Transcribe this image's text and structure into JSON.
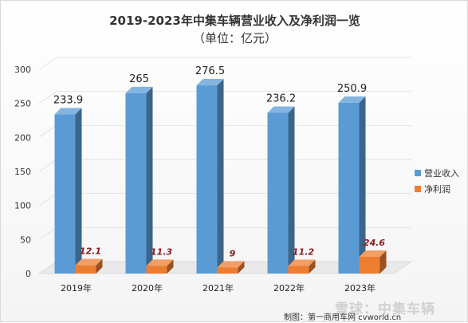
{
  "title": "2019-2023年中集车辆营业收入及净利润一览",
  "subtitle": "（单位：亿元）",
  "credit": "制图：第一商用车网 cvworld.cn",
  "watermark": "雪球：中集车辆",
  "chart_data": {
    "type": "bar",
    "categories": [
      "2019年",
      "2020年",
      "2021年",
      "2022年",
      "2023年"
    ],
    "series": [
      {
        "name": "营业收入",
        "values": [
          233.9,
          265,
          276.5,
          236.2,
          250.9
        ],
        "color": "#5B9BD5",
        "labels": [
          "233.9",
          "265",
          "276.5",
          "236.2",
          "250.9"
        ]
      },
      {
        "name": "净利润",
        "values": [
          12.1,
          11.3,
          9,
          11.2,
          24.6
        ],
        "color": "#ED7D31",
        "labels": [
          "12.1",
          "11.3",
          "9",
          "11.2",
          "24.6"
        ]
      }
    ],
    "yticks": [
      "0",
      "50",
      "100",
      "150",
      "200",
      "250",
      "300"
    ],
    "ylim": [
      0,
      300
    ],
    "grid": true,
    "legend": "right"
  }
}
